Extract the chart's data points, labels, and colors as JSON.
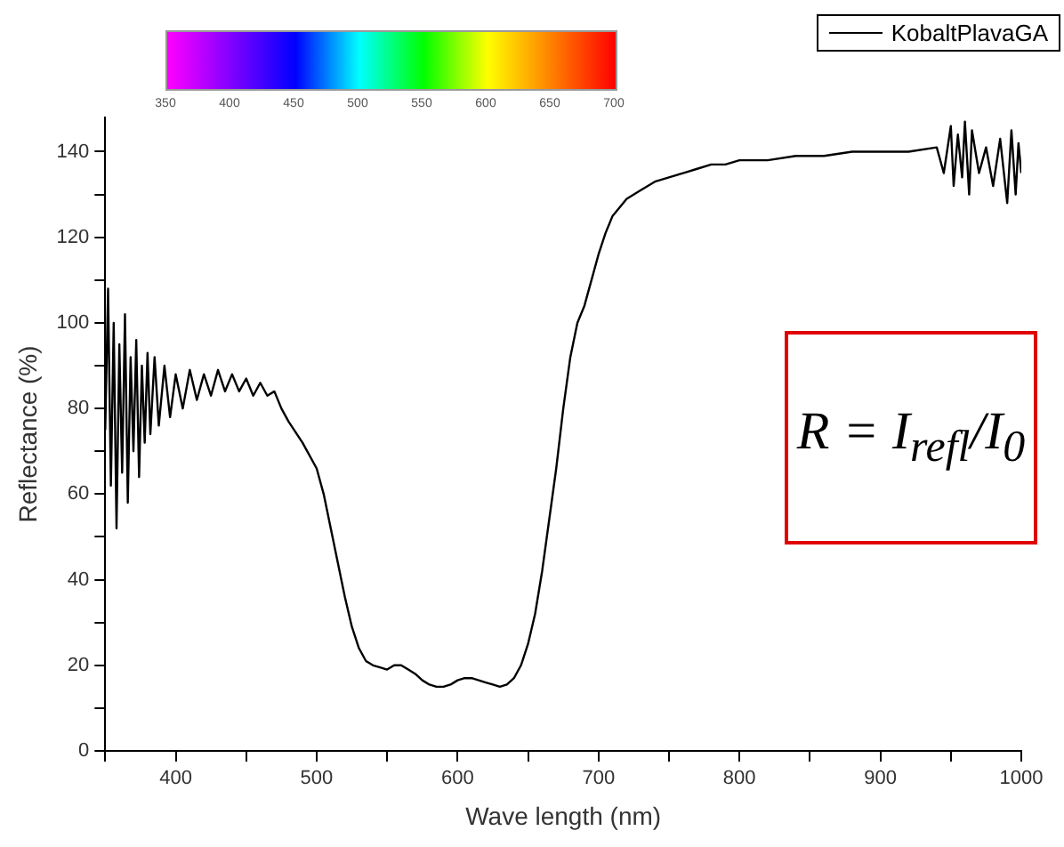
{
  "chart_data": {
    "type": "line",
    "xlabel": "Wave length (nm)",
    "ylabel": "Reflectance (%)",
    "xlim": [
      350,
      1000
    ],
    "ylim": [
      0,
      148
    ],
    "xticks": [
      {
        "value": 350,
        "label": null
      },
      400,
      {
        "value": 450,
        "label": null
      },
      500,
      {
        "value": 550,
        "label": null
      },
      600,
      {
        "value": 650,
        "label": null
      },
      700,
      {
        "value": 750,
        "label": null
      },
      800,
      {
        "value": 850,
        "label": null
      },
      900,
      {
        "value": 950,
        "label": null
      },
      1000
    ],
    "yticks": [
      0,
      {
        "value": 10,
        "label": null
      },
      20,
      {
        "value": 30,
        "label": null
      },
      40,
      {
        "value": 50,
        "label": null
      },
      60,
      {
        "value": 70,
        "label": null
      },
      80,
      {
        "value": 90,
        "label": null
      },
      100,
      {
        "value": 110,
        "label": null
      },
      120,
      {
        "value": 130,
        "label": null
      },
      140
    ],
    "legend": "top right",
    "grid": false,
    "marker": "none",
    "line_style": "solid",
    "annotations": [
      "R = I$_{refl}$/I$_{0}$",
      "350",
      "400",
      "450",
      "500",
      "550",
      "600",
      "650",
      "700"
    ],
    "series": [
      {
        "name": "KobaltPlavaGA",
        "color": "#000000",
        "x": [
          350,
          352,
          354,
          356,
          358,
          360,
          362,
          364,
          366,
          368,
          370,
          372,
          374,
          376,
          378,
          380,
          382,
          385,
          388,
          392,
          396,
          400,
          405,
          410,
          415,
          420,
          425,
          430,
          435,
          440,
          445,
          450,
          455,
          460,
          465,
          470,
          475,
          480,
          490,
          500,
          505,
          510,
          515,
          520,
          525,
          530,
          535,
          540,
          545,
          550,
          555,
          560,
          565,
          570,
          575,
          580,
          585,
          590,
          595,
          600,
          605,
          610,
          615,
          620,
          625,
          630,
          635,
          640,
          645,
          650,
          655,
          660,
          665,
          670,
          675,
          680,
          685,
          690,
          695,
          700,
          705,
          710,
          720,
          730,
          740,
          750,
          760,
          770,
          780,
          790,
          800,
          820,
          840,
          860,
          880,
          900,
          920,
          940,
          945,
          950,
          952,
          955,
          958,
          960,
          963,
          965,
          970,
          975,
          980,
          985,
          990,
          993,
          996,
          998,
          1000
        ],
        "values": [
          75,
          108,
          62,
          100,
          52,
          95,
          65,
          102,
          58,
          92,
          70,
          96,
          64,
          90,
          72,
          93,
          74,
          92,
          76,
          90,
          78,
          88,
          80,
          89,
          82,
          88,
          83,
          89,
          84,
          88,
          84,
          87,
          83,
          86,
          83,
          84,
          80,
          77,
          72,
          66,
          60,
          52,
          44,
          36,
          29,
          24,
          21,
          20,
          19.5,
          19,
          20,
          20,
          19,
          18,
          16.5,
          15.5,
          15,
          15,
          15.5,
          16.5,
          17,
          17,
          16.5,
          16,
          15.5,
          15,
          15.5,
          17,
          20,
          25,
          32,
          42,
          54,
          66,
          80,
          92,
          100,
          104,
          110,
          116,
          121,
          125,
          129,
          131,
          133,
          134,
          135,
          136,
          137,
          137,
          138,
          138,
          139,
          139,
          140,
          140,
          140,
          141,
          135,
          146,
          132,
          144,
          134,
          147,
          130,
          145,
          135,
          141,
          132,
          143,
          128,
          145,
          130,
          142,
          135
        ]
      }
    ]
  }
}
